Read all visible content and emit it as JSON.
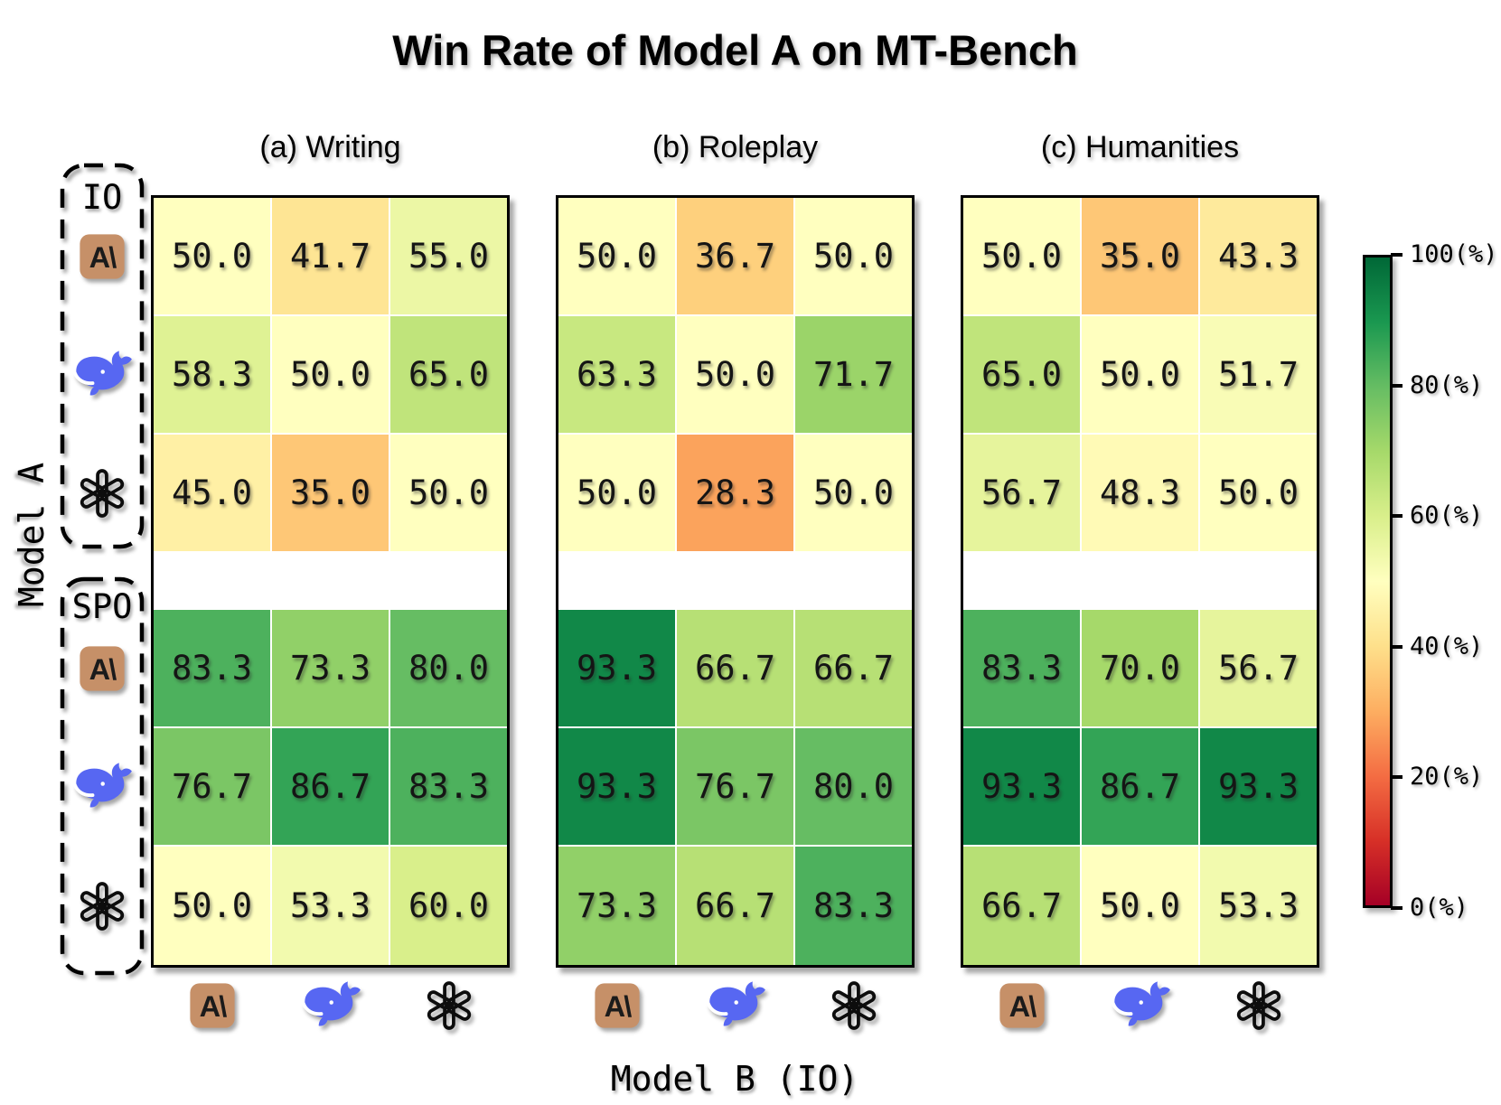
{
  "title": "Win Rate of Model A on MT-Bench",
  "axis": {
    "y_label": "Model A",
    "x_label": "Model B (IO)"
  },
  "groups": [
    {
      "label": "IO"
    },
    {
      "label": "SPO"
    }
  ],
  "row_models": [
    "Anthropic",
    "DeepSeek",
    "OpenAI",
    "Anthropic",
    "DeepSeek",
    "OpenAI"
  ],
  "col_models": [
    "Anthropic",
    "DeepSeek",
    "OpenAI"
  ],
  "icons": {
    "anthropic_glyph": "A\\"
  },
  "colors": {
    "anthropic_bg": "#C69068",
    "anthropic_glyph": "#1b1b1b",
    "deepseek_blue": "#5767F2",
    "openai_black": "#0d0d0d",
    "cell_text": "#151515",
    "panel_border": "#000000"
  },
  "colorbar": {
    "tick_labels": [
      "100(%)",
      "80(%)",
      "60(%)",
      "40(%)",
      "20(%)",
      "0(%)"
    ],
    "min": 0,
    "max": 100,
    "orientation": "vertical",
    "position": "right"
  },
  "colormap": {
    "name": "RdYlGn",
    "domain": [
      0,
      100
    ],
    "anchors": [
      "#a50026",
      "#d73027",
      "#f46d43",
      "#fdae61",
      "#fee08b",
      "#ffffbf",
      "#d9ef8b",
      "#a6d96a",
      "#66bd63",
      "#1a9850",
      "#006837"
    ]
  },
  "chart_data": [
    {
      "type": "heatmap",
      "title": "(a) Writing",
      "unit": "%",
      "vmin": 0,
      "vmax": 100,
      "x_categories": [
        "Anthropic (IO)",
        "DeepSeek (IO)",
        "OpenAI (IO)"
      ],
      "y_categories": [
        "IO Anthropic",
        "IO DeepSeek",
        "IO OpenAI",
        "SPO Anthropic",
        "SPO DeepSeek",
        "SPO OpenAI"
      ],
      "values": [
        [
          50.0,
          41.7,
          55.0
        ],
        [
          58.3,
          50.0,
          65.0
        ],
        [
          45.0,
          35.0,
          50.0
        ],
        [
          83.3,
          73.3,
          80.0
        ],
        [
          76.7,
          86.7,
          83.3
        ],
        [
          50.0,
          53.3,
          60.0
        ]
      ]
    },
    {
      "type": "heatmap",
      "title": "(b) Roleplay",
      "unit": "%",
      "vmin": 0,
      "vmax": 100,
      "x_categories": [
        "Anthropic (IO)",
        "DeepSeek (IO)",
        "OpenAI (IO)"
      ],
      "y_categories": [
        "IO Anthropic",
        "IO DeepSeek",
        "IO OpenAI",
        "SPO Anthropic",
        "SPO DeepSeek",
        "SPO OpenAI"
      ],
      "values": [
        [
          50.0,
          36.7,
          50.0
        ],
        [
          63.3,
          50.0,
          71.7
        ],
        [
          50.0,
          28.3,
          50.0
        ],
        [
          93.3,
          66.7,
          66.7
        ],
        [
          93.3,
          76.7,
          80.0
        ],
        [
          73.3,
          66.7,
          83.3
        ]
      ]
    },
    {
      "type": "heatmap",
      "title": "(c) Humanities",
      "unit": "%",
      "vmin": 0,
      "vmax": 100,
      "x_categories": [
        "Anthropic (IO)",
        "DeepSeek (IO)",
        "OpenAI (IO)"
      ],
      "y_categories": [
        "IO Anthropic",
        "IO DeepSeek",
        "IO OpenAI",
        "SPO Anthropic",
        "SPO DeepSeek",
        "SPO OpenAI"
      ],
      "values": [
        [
          50.0,
          35.0,
          43.3
        ],
        [
          65.0,
          50.0,
          51.7
        ],
        [
          56.7,
          48.3,
          50.0
        ],
        [
          83.3,
          70.0,
          56.7
        ],
        [
          93.3,
          86.7,
          93.3
        ],
        [
          66.7,
          50.0,
          53.3
        ]
      ]
    }
  ]
}
